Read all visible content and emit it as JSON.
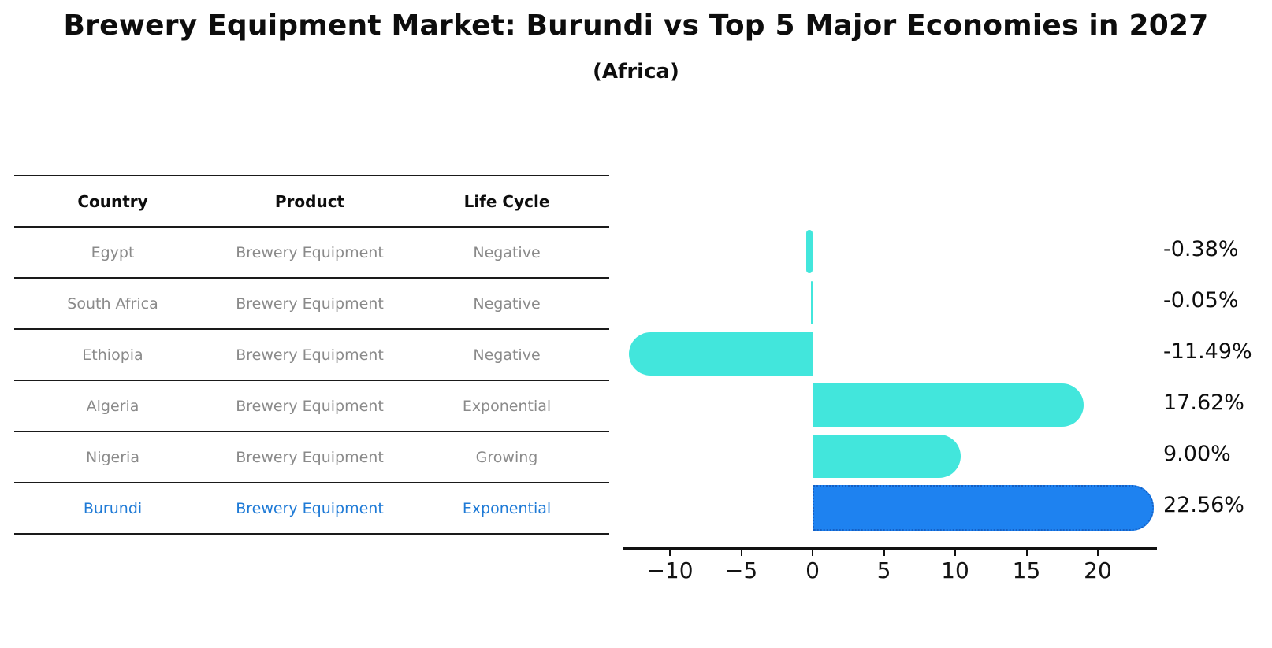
{
  "title": "Brewery Equipment Market: Burundi vs Top 5 Major Economies in 2027",
  "subtitle": "(Africa)",
  "table": {
    "headers": [
      "Country",
      "Product",
      "Life Cycle"
    ],
    "rows": [
      {
        "country": "Egypt",
        "product": "Brewery Equipment",
        "life_cycle": "Negative",
        "highlight": false
      },
      {
        "country": "South Africa",
        "product": "Brewery Equipment",
        "life_cycle": "Negative",
        "highlight": false
      },
      {
        "country": "Ethiopia",
        "product": "Brewery Equipment",
        "life_cycle": "Negative",
        "highlight": false
      },
      {
        "country": "Algeria",
        "product": "Brewery Equipment",
        "life_cycle": "Exponential",
        "highlight": false
      },
      {
        "country": "Nigeria",
        "product": "Brewery Equipment",
        "life_cycle": "Growing",
        "highlight": false
      },
      {
        "country": "Burundi",
        "product": "Brewery Equipment",
        "life_cycle": "Exponential",
        "highlight": true
      }
    ]
  },
  "chart_data": {
    "type": "bar",
    "orientation": "horizontal",
    "title": "Brewery Equipment Market: Burundi vs Top 5 Major Economies in 2027 (Africa)",
    "xlabel": "",
    "ylabel": "",
    "categories": [
      "Egypt",
      "South Africa",
      "Ethiopia",
      "Algeria",
      "Nigeria",
      "Burundi"
    ],
    "values": [
      -0.38,
      -0.05,
      -11.49,
      17.62,
      9.0,
      22.56
    ],
    "value_labels": [
      "-0.38%",
      "-0.05%",
      "-11.49%",
      "17.62%",
      "9.00%",
      "22.56%"
    ],
    "x_ticks": [
      -10,
      -5,
      0,
      5,
      10,
      15,
      20
    ],
    "x_tick_labels": [
      "−10",
      "−5",
      "0",
      "5",
      "10",
      "15",
      "20"
    ],
    "xlim": [
      -13.3,
      24.1
    ],
    "grid": false,
    "legend": null,
    "highlight_index": 5,
    "bar_color": "#42e6dc",
    "highlight_color": "#1e82f0",
    "highlight_border_color": "#1560c4",
    "highlight_text_color": "#1e7ad6",
    "text_color": "#0d0d0d",
    "muted_text_color": "#8a8a8a"
  }
}
